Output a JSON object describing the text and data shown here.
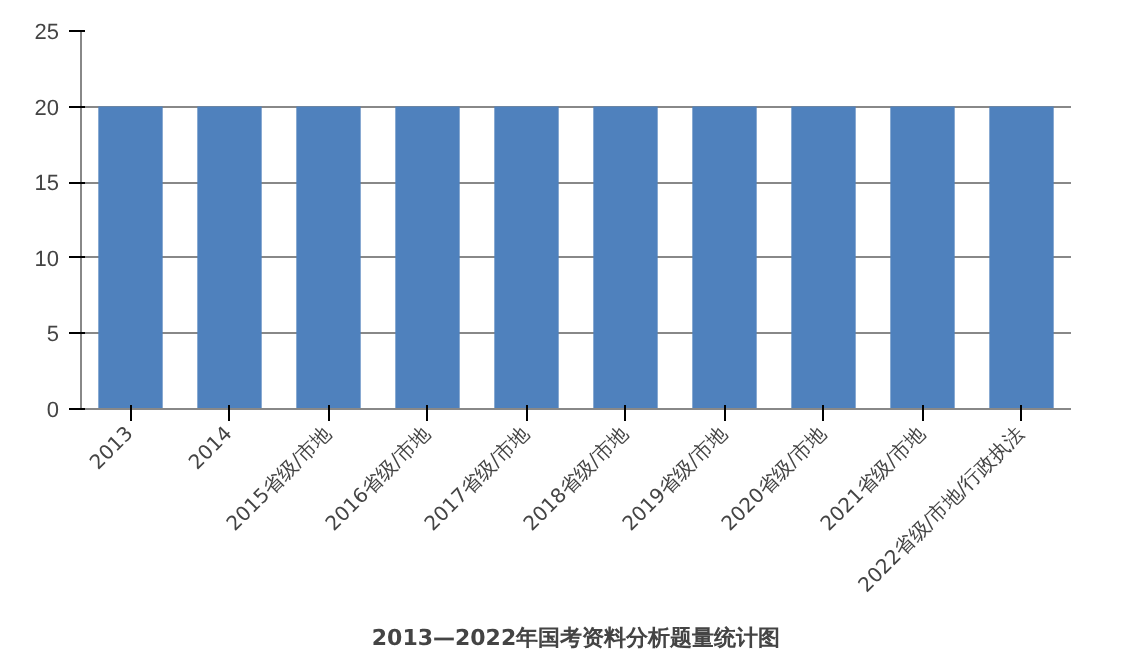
{
  "chart_data": {
    "type": "bar",
    "title": "2013—2022年国考资料分析题量统计图",
    "categories": [
      "2013",
      "2014",
      "2015省级/市地",
      "2016省级/市地",
      "2017省级/市地",
      "2018省级/市地",
      "2019省级/市地",
      "2020省级/市地",
      "2021省级/市地",
      "2022省级/市地/行政执法"
    ],
    "values": [
      20,
      20,
      20,
      20,
      20,
      20,
      20,
      20,
      20,
      20
    ],
    "color": "#4f81bd",
    "ylim": [
      0,
      25
    ],
    "yticks": [
      0,
      5,
      10,
      15,
      20,
      25
    ],
    "grid": "y"
  }
}
